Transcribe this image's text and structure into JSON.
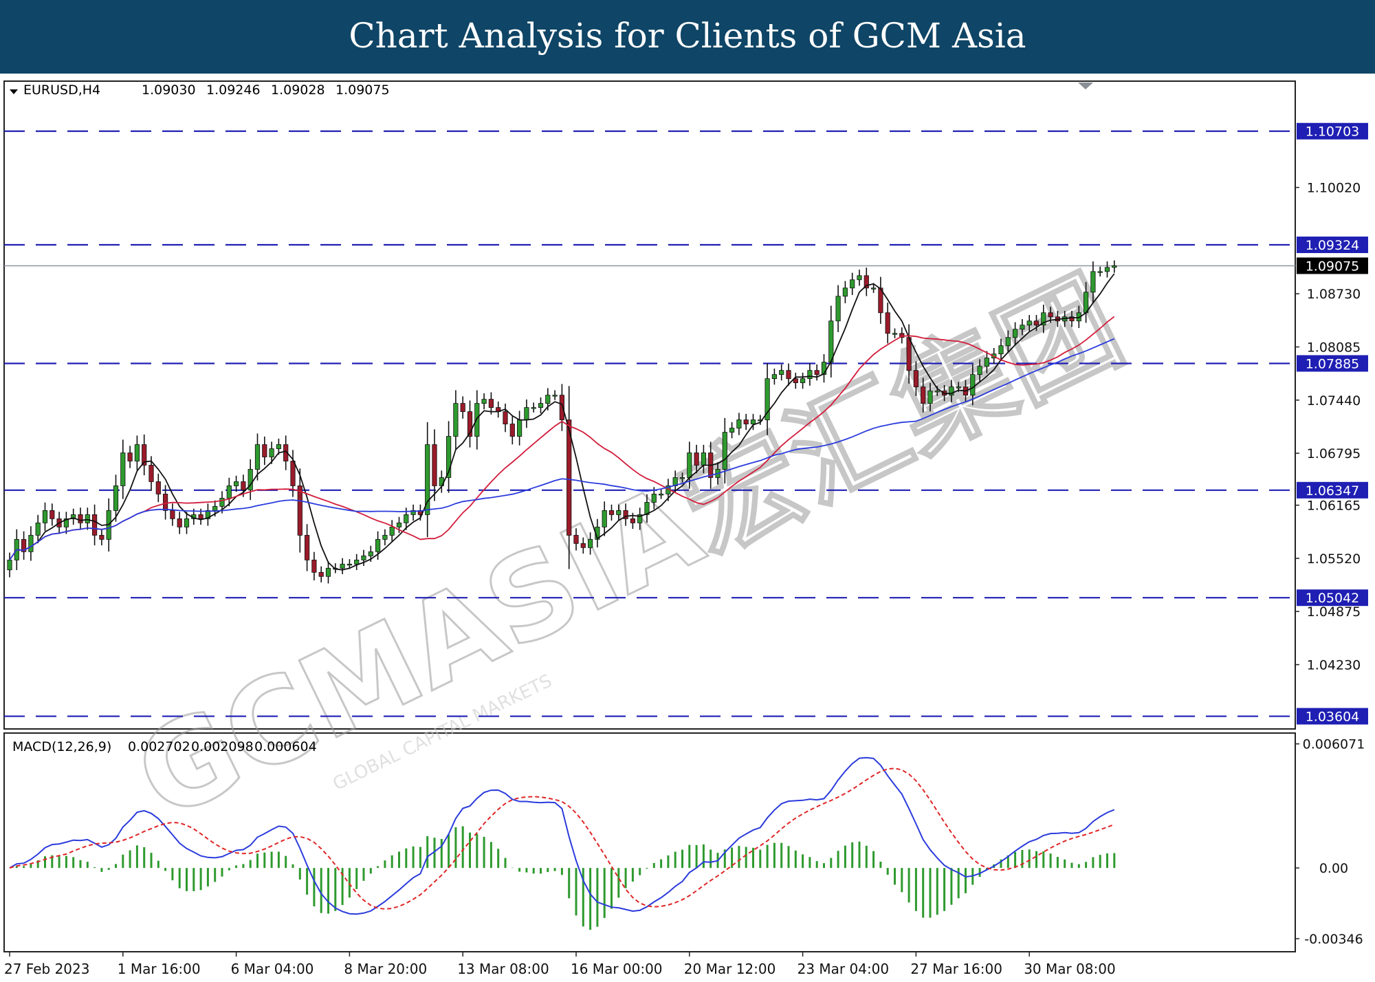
{
  "banner": {
    "title": "Chart Analysis for Clients of GCM Asia"
  },
  "watermark": {
    "text": "GCMASIA宏汇集团",
    "subtext": "GLOBAL CAPITAL MARKETS"
  },
  "colors": {
    "bull_candle": "#2e9a2e",
    "bear_candle": "#9a1b2a",
    "wick": "#111111",
    "ma_fast": "#111111",
    "ma_mid": "#d21c3a",
    "ma_slow": "#2a3bdc",
    "level_line": "#1f1fb4",
    "macd_line": "#2a3bdc",
    "signal_line": "#e02525",
    "histogram": "#2e9a2e",
    "current_price_bg": "#000000"
  },
  "chart_data": [
    {
      "type": "candlestick",
      "title": "EURUSD,H4",
      "ohlc_readout": [
        "1.09030",
        "1.09246",
        "1.09028",
        "1.09075"
      ],
      "ylim": [
        1.0345,
        1.1131
      ],
      "y_ticks": [
        "1.10020",
        "1.08730",
        "1.08085",
        "1.07440",
        "1.06795",
        "1.06165",
        "1.05520",
        "1.04875",
        "1.04230"
      ],
      "y_tick_values": [
        1.1002,
        1.0873,
        1.08085,
        1.0744,
        1.06795,
        1.06165,
        1.0552,
        1.04875,
        1.0423
      ],
      "x_ticks": [
        "27 Feb 2023",
        "1 Mar 16:00",
        "6 Mar 04:00",
        "8 Mar 20:00",
        "13 Mar 08:00",
        "16 Mar 00:00",
        "20 Mar 12:00",
        "23 Mar 04:00",
        "27 Mar 16:00",
        "30 Mar 08:00"
      ],
      "x_tick_bars": [
        0,
        16,
        32,
        48,
        64,
        80,
        96,
        112,
        128,
        144
      ],
      "current_price": "1.09075",
      "levels": [
        {
          "label": "1.10703",
          "value": 1.10703
        },
        {
          "label": "1.09324",
          "value": 1.09324
        },
        {
          "label": "1.07885",
          "value": 1.07885
        },
        {
          "label": "1.06347",
          "value": 1.06347
        },
        {
          "label": "1.05042",
          "value": 1.05042
        },
        {
          "label": "1.03604",
          "value": 1.03604
        }
      ],
      "close": [
        1.055,
        1.0575,
        1.056,
        1.058,
        1.0595,
        1.061,
        1.06,
        1.059,
        1.06,
        1.0605,
        1.0595,
        1.0605,
        1.058,
        1.0575,
        1.061,
        1.064,
        1.068,
        1.067,
        1.069,
        1.0665,
        1.0645,
        1.063,
        1.061,
        1.06,
        1.059,
        1.06,
        1.0605,
        1.06,
        1.061,
        1.0615,
        1.0625,
        1.064,
        1.0645,
        1.0635,
        1.066,
        1.069,
        1.0675,
        1.0685,
        1.069,
        1.067,
        1.064,
        1.058,
        1.055,
        1.0535,
        1.053,
        1.054,
        1.054,
        1.0545,
        1.0545,
        1.055,
        1.0555,
        1.056,
        1.0575,
        1.058,
        1.059,
        1.0595,
        1.0605,
        1.061,
        1.0605,
        1.069,
        1.064,
        1.065,
        1.07,
        1.074,
        1.073,
        1.07,
        1.074,
        1.0745,
        1.0735,
        1.073,
        1.0715,
        1.07,
        1.072,
        1.0735,
        1.0735,
        1.074,
        1.075,
        1.075,
        1.072,
        1.058,
        1.057,
        1.0565,
        1.0575,
        1.059,
        1.061,
        1.0605,
        1.061,
        1.06,
        1.0595,
        1.0605,
        1.062,
        1.063,
        1.063,
        1.064,
        1.065,
        1.065,
        1.068,
        1.0665,
        1.068,
        1.065,
        1.066,
        1.0705,
        1.071,
        1.072,
        1.0715,
        1.072,
        1.072,
        1.077,
        1.0775,
        1.078,
        1.077,
        1.0765,
        1.077,
        1.078,
        1.0775,
        1.079,
        1.084,
        1.087,
        1.088,
        1.089,
        1.0895,
        1.088,
        1.088,
        1.085,
        1.0825,
        1.0825,
        1.082,
        1.078,
        1.076,
        1.074,
        1.0755,
        1.0755,
        1.075,
        1.076,
        1.076,
        1.075,
        1.0775,
        1.0785,
        1.0795,
        1.08,
        1.081,
        1.082,
        1.083,
        1.0835,
        1.084,
        1.0835,
        1.085,
        1.0845,
        1.084,
        1.0845,
        1.084,
        1.085,
        1.0875,
        1.09,
        1.09,
        1.0905,
        1.0907
      ]
    },
    {
      "type": "macd",
      "title": "MACD(12,26,9)",
      "values_readout": [
        "0.002702",
        "0.002098",
        "0.000604"
      ],
      "ylim": [
        -0.0041,
        0.0066
      ],
      "y_ticks": [
        "0.006071",
        "0.00",
        "-0.00346"
      ],
      "y_tick_values": [
        0.006071,
        0.0,
        -0.00346
      ]
    }
  ]
}
